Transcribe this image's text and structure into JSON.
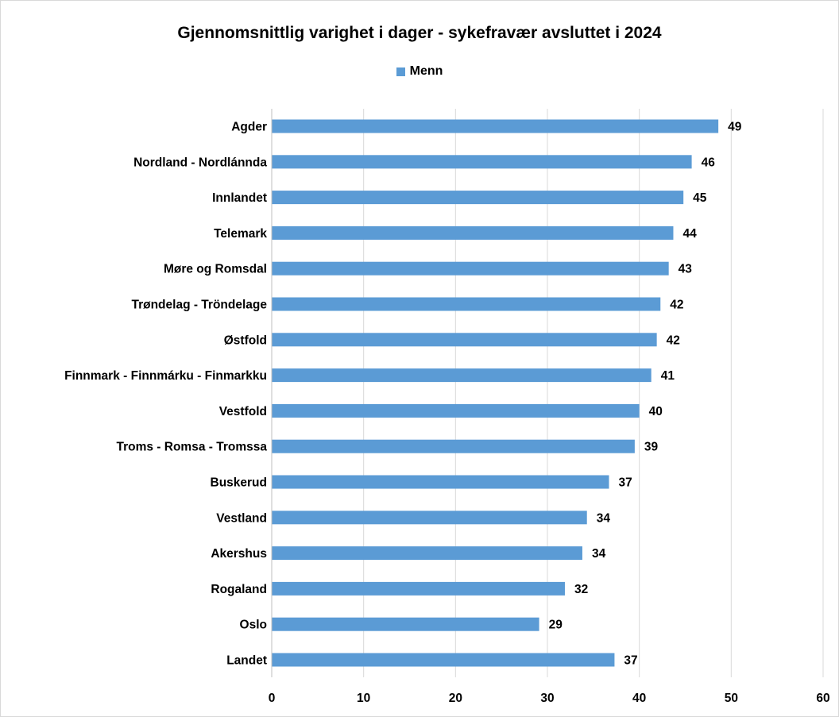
{
  "chart_data": {
    "type": "bar",
    "orientation": "horizontal",
    "title": "Gjennomsnittlig varighet i dager - sykefravær avsluttet i 2024",
    "legend_position": "top",
    "categories": [
      "Agder",
      "Nordland - Nordlánnda",
      "Innlandet",
      "Telemark",
      "Møre og Romsdal",
      "Trøndelag - Tröndelage",
      "Østfold",
      "Finnmark - Finnmárku - Finmarkku",
      "Vestfold",
      "Troms - Romsa - Tromssa",
      "Buskerud",
      "Vestland",
      "Akershus",
      "Rogaland",
      "Oslo",
      "Landet"
    ],
    "series": [
      {
        "name": "Menn",
        "color": "#5b9bd5",
        "values": [
          48.6,
          45.7,
          44.8,
          43.7,
          43.2,
          42.3,
          41.9,
          41.3,
          40.0,
          39.5,
          36.7,
          34.3,
          33.8,
          31.9,
          29.1,
          37.3
        ],
        "labels": [
          "49",
          "46",
          "45",
          "44",
          "43",
          "42",
          "42",
          "41",
          "40",
          "39",
          "37",
          "34",
          "34",
          "32",
          "29",
          "37"
        ]
      }
    ],
    "xlim": [
      0,
      60
    ],
    "xticks": [
      "0",
      "10",
      "20",
      "30",
      "40",
      "50",
      "60"
    ],
    "grid": true
  }
}
